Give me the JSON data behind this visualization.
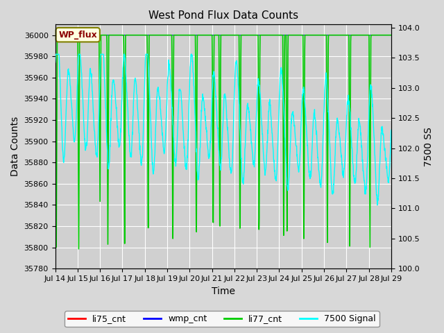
{
  "title": "West Pond Flux Data Counts",
  "xlabel": "Time",
  "ylabel_left": "Data Counts",
  "ylabel_right": "7500 SS",
  "ylim_left": [
    35780,
    36010
  ],
  "ylim_right": [
    100.0,
    104.05
  ],
  "yticks_left": [
    35780,
    35800,
    35820,
    35840,
    35860,
    35880,
    35900,
    35920,
    35940,
    35960,
    35980,
    36000
  ],
  "yticks_right": [
    100.0,
    100.5,
    101.0,
    101.5,
    102.0,
    102.5,
    103.0,
    103.5,
    104.0
  ],
  "annotation_text": "WP_flux",
  "fig_facecolor": "#d8d8d8",
  "plot_facecolor": "#d0d0d0",
  "grid_color": "white",
  "li77_color": "#00cc00",
  "signal_color": "cyan",
  "wmp_color": "blue",
  "li75_color": "red",
  "x_start": 14.0,
  "x_end": 29.0,
  "xtick_positions": [
    14,
    15,
    16,
    17,
    18,
    19,
    20,
    21,
    22,
    23,
    24,
    25,
    26,
    27,
    28,
    29
  ],
  "xtick_labels": [
    "Jul 14",
    "Jul 15",
    "Jul 16",
    "Jul 17",
    "Jul 18",
    "Jul 19",
    "Jul 20",
    "Jul 21",
    "Jul 22",
    "Jul 23",
    "Jul 24",
    "Jul 25",
    "Jul 26",
    "Jul 27",
    "Jul 28",
    "Jul 29"
  ],
  "legend_entries": [
    "li75_cnt",
    "wmp_cnt",
    "li77_cnt",
    "7500 Signal"
  ],
  "legend_colors": [
    "red",
    "blue",
    "#00cc00",
    "cyan"
  ]
}
